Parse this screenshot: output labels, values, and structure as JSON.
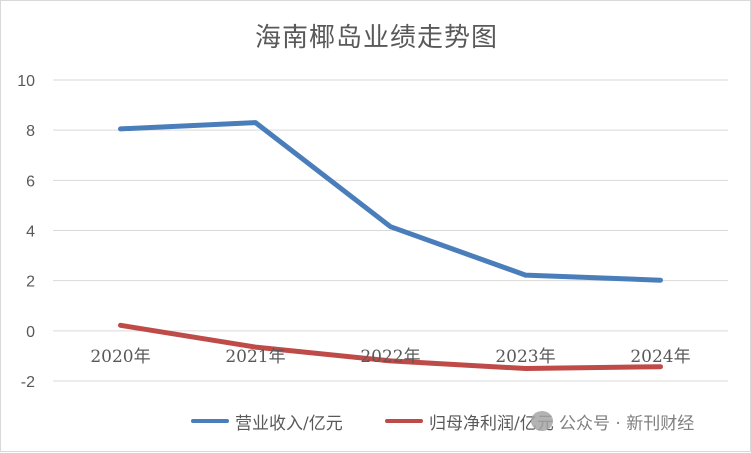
{
  "chart_data": {
    "type": "line",
    "title": "海南椰岛业绩走势图",
    "categories": [
      "2020年",
      "2021年",
      "2022年",
      "2023年",
      "2024年"
    ],
    "series": [
      {
        "name": "营业收入/亿元",
        "values": [
          8.05,
          8.3,
          4.15,
          2.22,
          2.02
        ],
        "color": "#4a7ebb"
      },
      {
        "name": "归母净利润/亿元",
        "values": [
          0.22,
          -0.65,
          -1.2,
          -1.5,
          -1.43
        ],
        "color": "#be4b48"
      }
    ],
    "ylim": [
      -2,
      10
    ],
    "yticks": [
      "-2",
      "0",
      "2",
      "4",
      "6",
      "8",
      "10"
    ],
    "grid": true,
    "legend_position": "bottom"
  },
  "watermark": {
    "text": "公众号 · 新刊财经",
    "logo": "wechat-logo"
  }
}
